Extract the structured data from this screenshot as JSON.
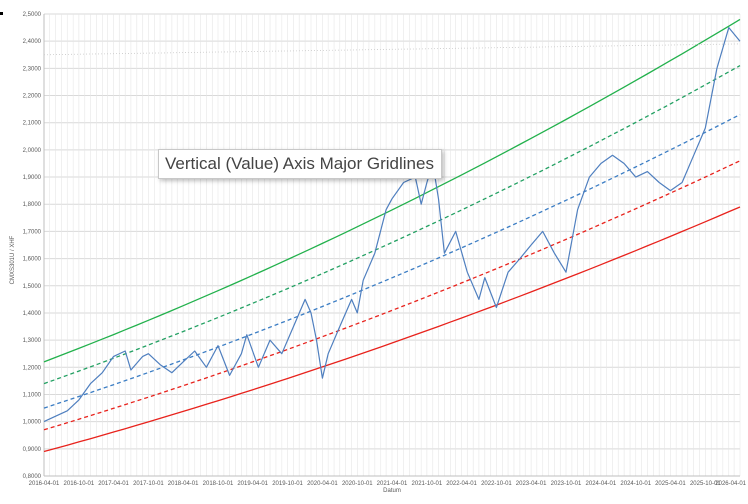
{
  "tooltip": {
    "text": "Vertical (Value) Axis Major Gridlines"
  },
  "chart_data": {
    "type": "line",
    "xlabel": "Datum",
    "ylabel": "CMXS301U / XHF",
    "ylim": [
      0.8,
      2.5
    ],
    "ytick_step": 0.1,
    "y_ticks": [
      "0,8000",
      "0,9000",
      "1,0000",
      "1,1000",
      "1,2000",
      "1,3000",
      "1,4000",
      "1,5000",
      "1,6000",
      "1,7000",
      "1,8000",
      "1,9000",
      "2,0000",
      "2,1000",
      "2,2000",
      "2,3000",
      "2,4000",
      "2,5000"
    ],
    "x_range": [
      "2016-04-01",
      "2026-04-01"
    ],
    "x_ticks": [
      "2016-04-01",
      "2016-10-01",
      "2017-04-01",
      "2017-10-01",
      "2018-04-01",
      "2018-10-01",
      "2019-04-01",
      "2019-10-01",
      "2020-04-01",
      "2020-10-01",
      "2021-04-01",
      "2021-10-01",
      "2022-04-01",
      "2022-10-01",
      "2023-04-01",
      "2023-10-01",
      "2024-04-01",
      "2024-10-01",
      "2025-04-01",
      "2025-10-01",
      "2026-04-01"
    ],
    "grid": true,
    "colors": {
      "price": "#4f7fbf",
      "upper_solid": "#22b14c",
      "upper_dashed": "#22a062",
      "mid_dashed": "#3b7dc4",
      "lower_dashed": "#e8221c",
      "lower_solid": "#e8221c",
      "dotted": "#c9c9c9",
      "grid": "#d9d9d9",
      "tooltip_text": "#444444"
    },
    "series": [
      {
        "key": "upper_solid",
        "style": "solid",
        "x": [
          "2016-04-01",
          "2026-04-01"
        ],
        "y": [
          1.22,
          2.48
        ],
        "curve": 0.45
      },
      {
        "key": "upper_dashed",
        "style": "dashed",
        "x": [
          "2016-04-01",
          "2026-04-01"
        ],
        "y": [
          1.14,
          2.31
        ],
        "curve": 0.45
      },
      {
        "key": "mid_dashed",
        "style": "dashed",
        "x": [
          "2016-04-01",
          "2026-04-01"
        ],
        "y": [
          1.05,
          2.13
        ],
        "curve": 0.45
      },
      {
        "key": "lower_dashed",
        "style": "dashed",
        "x": [
          "2016-04-01",
          "2026-04-01"
        ],
        "y": [
          0.97,
          1.96
        ],
        "curve": 0.45
      },
      {
        "key": "lower_solid",
        "style": "solid",
        "x": [
          "2016-04-01",
          "2026-04-01"
        ],
        "y": [
          0.89,
          1.79
        ],
        "curve": 0.45
      },
      {
        "key": "dotted",
        "style": "dotted",
        "x": [
          "2016-04-01",
          "2026-04-01"
        ],
        "y": [
          2.35,
          2.39
        ],
        "curve": 0
      },
      {
        "key": "price",
        "style": "solid",
        "x": [
          "2016-04-01",
          "2016-06-01",
          "2016-08-01",
          "2016-10-01",
          "2016-12-01",
          "2017-02-01",
          "2017-04-01",
          "2017-06-01",
          "2017-07-01",
          "2017-09-01",
          "2017-10-01",
          "2017-12-01",
          "2018-02-01",
          "2018-04-01",
          "2018-06-01",
          "2018-08-01",
          "2018-10-01",
          "2018-12-01",
          "2019-02-01",
          "2019-03-01",
          "2019-05-01",
          "2019-07-01",
          "2019-09-01",
          "2019-11-01",
          "2020-01-01",
          "2020-02-01",
          "2020-03-01",
          "2020-04-01",
          "2020-05-01",
          "2020-07-01",
          "2020-09-01",
          "2020-10-01",
          "2020-11-01",
          "2021-01-01",
          "2021-03-01",
          "2021-04-01",
          "2021-06-01",
          "2021-08-01",
          "2021-09-01",
          "2021-10-01",
          "2021-11-01",
          "2021-12-01",
          "2022-01-01",
          "2022-03-01",
          "2022-05-01",
          "2022-07-01",
          "2022-08-01",
          "2022-10-01",
          "2022-12-01",
          "2023-02-01",
          "2023-04-01",
          "2023-06-01",
          "2023-08-01",
          "2023-10-01",
          "2023-12-01",
          "2024-02-01",
          "2024-04-01",
          "2024-06-01",
          "2024-08-01",
          "2024-10-01",
          "2024-12-01",
          "2025-02-01",
          "2025-04-01",
          "2025-06-01",
          "2025-08-01",
          "2025-10-01",
          "2025-12-01",
          "2026-02-01",
          "2026-04-01"
        ],
        "y": [
          1.0,
          1.02,
          1.04,
          1.08,
          1.14,
          1.18,
          1.24,
          1.26,
          1.19,
          1.24,
          1.25,
          1.21,
          1.18,
          1.22,
          1.26,
          1.2,
          1.28,
          1.17,
          1.25,
          1.32,
          1.2,
          1.3,
          1.25,
          1.35,
          1.45,
          1.4,
          1.3,
          1.16,
          1.25,
          1.35,
          1.45,
          1.4,
          1.52,
          1.62,
          1.78,
          1.82,
          1.88,
          1.9,
          1.8,
          1.88,
          1.95,
          1.82,
          1.62,
          1.7,
          1.55,
          1.45,
          1.53,
          1.42,
          1.55,
          1.6,
          1.65,
          1.7,
          1.62,
          1.55,
          1.78,
          1.9,
          1.95,
          1.98,
          1.95,
          1.9,
          1.92,
          1.88,
          1.85,
          1.88,
          1.98,
          2.08,
          2.3,
          2.45,
          2.4
        ]
      }
    ]
  }
}
